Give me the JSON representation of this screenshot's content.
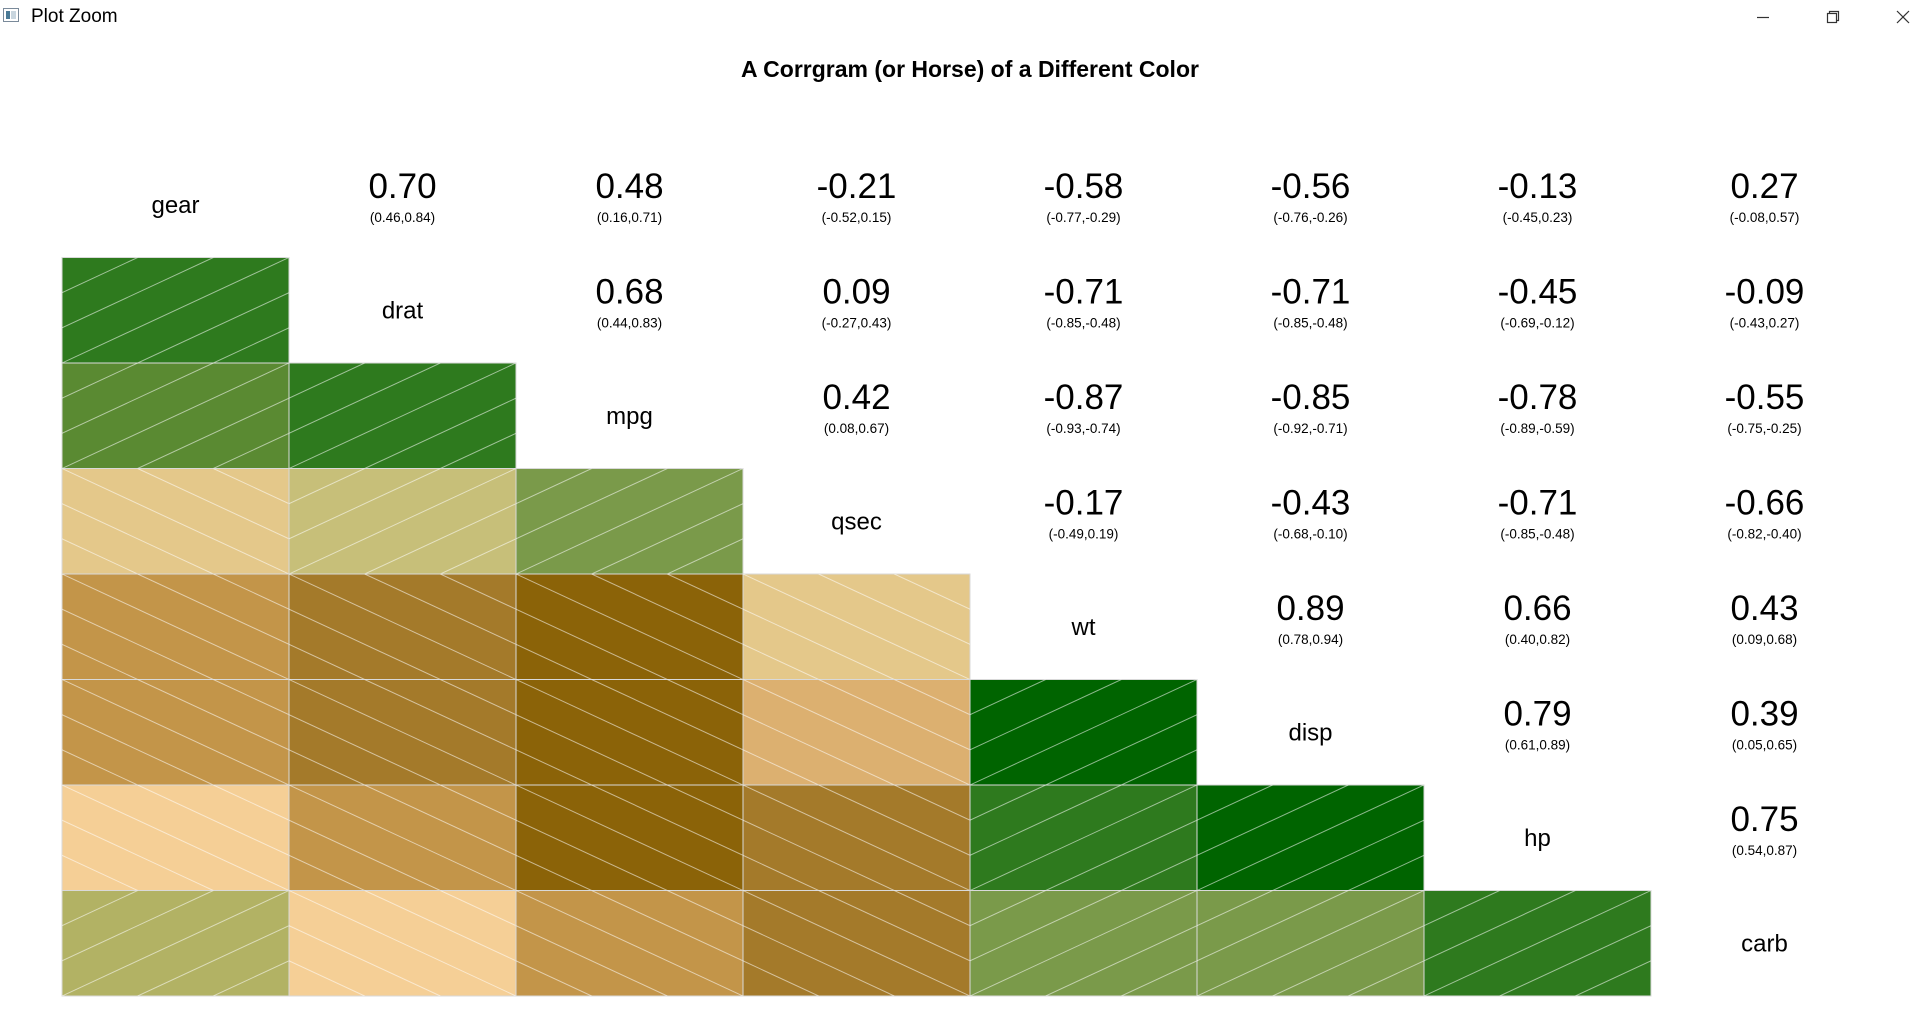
{
  "window": {
    "title": "Plot Zoom",
    "icon": "plot-window-icon"
  },
  "controls": {
    "minimize_icon": "minimize-icon",
    "restore_icon": "restore-icon",
    "close_icon": "close-icon"
  },
  "chart_data": {
    "type": "heatmap",
    "title": "A Corrgram (or Horse) of a Different Color",
    "variables": [
      "gear",
      "drat",
      "mpg",
      "qsec",
      "wt",
      "disp",
      "hp",
      "carb"
    ],
    "lower_panel": "shade",
    "upper_panel": "pts",
    "colors": {
      "positive": [
        "#c7bf79",
        "#b2b264",
        "#7a9a4a",
        "#5a8a32",
        "#2e7a1e",
        "#006400"
      ],
      "negative": [
        "#f5cf96",
        "#e4c88a",
        "#dcb070",
        "#c39549",
        "#a47a2a",
        "#8b6308"
      ],
      "grid_line": "#d9d9d9"
    },
    "cells": [
      {
        "row": "drat",
        "col": "gear",
        "r": 0.7,
        "ci": "(0.46,0.84)"
      },
      {
        "row": "mpg",
        "col": "gear",
        "r": 0.48,
        "ci": "(0.16,0.71)"
      },
      {
        "row": "mpg",
        "col": "drat",
        "r": 0.68,
        "ci": "(0.44,0.83)"
      },
      {
        "row": "qsec",
        "col": "gear",
        "r": -0.21,
        "ci": "(-0.52,0.15)"
      },
      {
        "row": "qsec",
        "col": "drat",
        "r": 0.09,
        "ci": "(-0.27,0.43)"
      },
      {
        "row": "qsec",
        "col": "mpg",
        "r": 0.42,
        "ci": "(0.08,0.67)"
      },
      {
        "row": "wt",
        "col": "gear",
        "r": -0.58,
        "ci": "(-0.77,-0.29)"
      },
      {
        "row": "wt",
        "col": "drat",
        "r": -0.71,
        "ci": "(-0.85,-0.48)"
      },
      {
        "row": "wt",
        "col": "mpg",
        "r": -0.87,
        "ci": "(-0.93,-0.74)"
      },
      {
        "row": "wt",
        "col": "qsec",
        "r": -0.17,
        "ci": "(-0.49,0.19)"
      },
      {
        "row": "disp",
        "col": "gear",
        "r": -0.56,
        "ci": "(-0.76,-0.26)"
      },
      {
        "row": "disp",
        "col": "drat",
        "r": -0.71,
        "ci": "(-0.85,-0.48)"
      },
      {
        "row": "disp",
        "col": "mpg",
        "r": -0.85,
        "ci": "(-0.92,-0.71)"
      },
      {
        "row": "disp",
        "col": "qsec",
        "r": -0.43,
        "ci": "(-0.68,-0.10)"
      },
      {
        "row": "disp",
        "col": "wt",
        "r": 0.89,
        "ci": "(0.78,0.94)"
      },
      {
        "row": "hp",
        "col": "gear",
        "r": -0.13,
        "ci": "(-0.45,0.23)"
      },
      {
        "row": "hp",
        "col": "drat",
        "r": -0.45,
        "ci": "(-0.69,-0.12)"
      },
      {
        "row": "hp",
        "col": "mpg",
        "r": -0.78,
        "ci": "(-0.89,-0.59)"
      },
      {
        "row": "hp",
        "col": "qsec",
        "r": -0.71,
        "ci": "(-0.85,-0.48)"
      },
      {
        "row": "hp",
        "col": "wt",
        "r": 0.66,
        "ci": "(0.40,0.82)"
      },
      {
        "row": "hp",
        "col": "disp",
        "r": 0.79,
        "ci": "(0.61,0.89)"
      },
      {
        "row": "carb",
        "col": "gear",
        "r": 0.27,
        "ci": "(-0.08,0.57)"
      },
      {
        "row": "carb",
        "col": "drat",
        "r": -0.09,
        "ci": "(-0.43,0.27)"
      },
      {
        "row": "carb",
        "col": "mpg",
        "r": -0.55,
        "ci": "(-0.75,-0.25)"
      },
      {
        "row": "carb",
        "col": "qsec",
        "r": -0.66,
        "ci": "(-0.82,-0.40)"
      },
      {
        "row": "carb",
        "col": "wt",
        "r": 0.43,
        "ci": "(0.09,0.68)"
      },
      {
        "row": "carb",
        "col": "disp",
        "r": 0.39,
        "ci": "(0.05,0.65)"
      },
      {
        "row": "carb",
        "col": "hp",
        "r": 0.75,
        "ci": "(0.54,0.87)"
      }
    ]
  }
}
